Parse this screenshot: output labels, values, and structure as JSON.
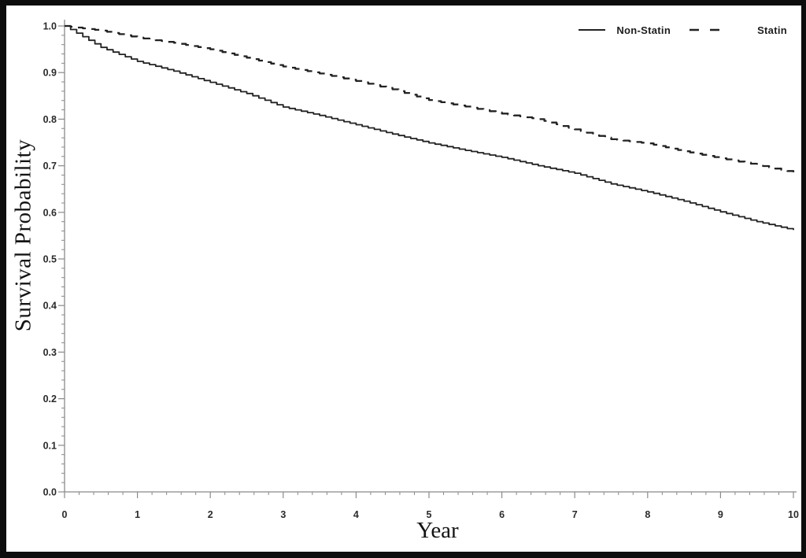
{
  "style": {
    "background": "#ffffff",
    "frame_border": "#0d0d0d",
    "axis_color": "#8a8a8a",
    "tick_label_color": "#2b2b2b",
    "line_color": "#222222"
  },
  "axis_titles": {
    "y": "Survival Probability",
    "x": "Year"
  },
  "legend": {
    "position": "top-right",
    "items": [
      {
        "label": "Non-Statin",
        "line": "solid"
      },
      {
        "label": "Statin",
        "line": "dashed"
      }
    ]
  },
  "chart_data": {
    "type": "line",
    "subtype": "kaplan-meier-survival",
    "title": "",
    "xlabel": "Year",
    "ylabel": "Survival Probability",
    "xlim": [
      0,
      10
    ],
    "ylim": [
      0.0,
      1.0
    ],
    "grid": false,
    "legend_position": "top-right",
    "x_ticks": [
      0,
      1,
      2,
      3,
      4,
      5,
      6,
      7,
      8,
      9,
      10
    ],
    "x_tick_labels": [
      "0",
      "1",
      "2",
      "3",
      "4",
      "5",
      "6",
      "7",
      "8",
      "9",
      "10"
    ],
    "x_minor_step": 0.2,
    "y_ticks": [
      0.0,
      0.1,
      0.2,
      0.3,
      0.4,
      0.5,
      0.6,
      0.7,
      0.8,
      0.9,
      1.0
    ],
    "y_tick_labels": [
      "0.0",
      "0.1",
      "0.2",
      "0.3",
      "0.4",
      "0.5",
      "0.6",
      "0.7",
      "0.8",
      "0.9",
      "1.0"
    ],
    "y_minor_step": 0.02,
    "x": [
      0,
      0.5,
      1,
      1.5,
      2,
      2.5,
      3,
      3.5,
      4,
      4.5,
      5,
      5.5,
      6,
      6.5,
      7,
      7.5,
      8,
      8.5,
      9,
      9.5,
      10
    ],
    "series": [
      {
        "name": "Non-Statin",
        "style": "solid",
        "color": "#222222",
        "values": [
          1.0,
          0.954,
          0.924,
          0.903,
          0.879,
          0.855,
          0.826,
          0.808,
          0.788,
          0.768,
          0.749,
          0.733,
          0.718,
          0.7,
          0.684,
          0.661,
          0.644,
          0.624,
          0.601,
          0.58,
          0.562
        ]
      },
      {
        "name": "Statin",
        "style": "dashed",
        "color": "#222222",
        "values": [
          1.0,
          0.99,
          0.975,
          0.964,
          0.95,
          0.932,
          0.913,
          0.898,
          0.882,
          0.864,
          0.841,
          0.827,
          0.812,
          0.8,
          0.778,
          0.757,
          0.748,
          0.731,
          0.716,
          0.702,
          0.686
        ]
      }
    ]
  }
}
